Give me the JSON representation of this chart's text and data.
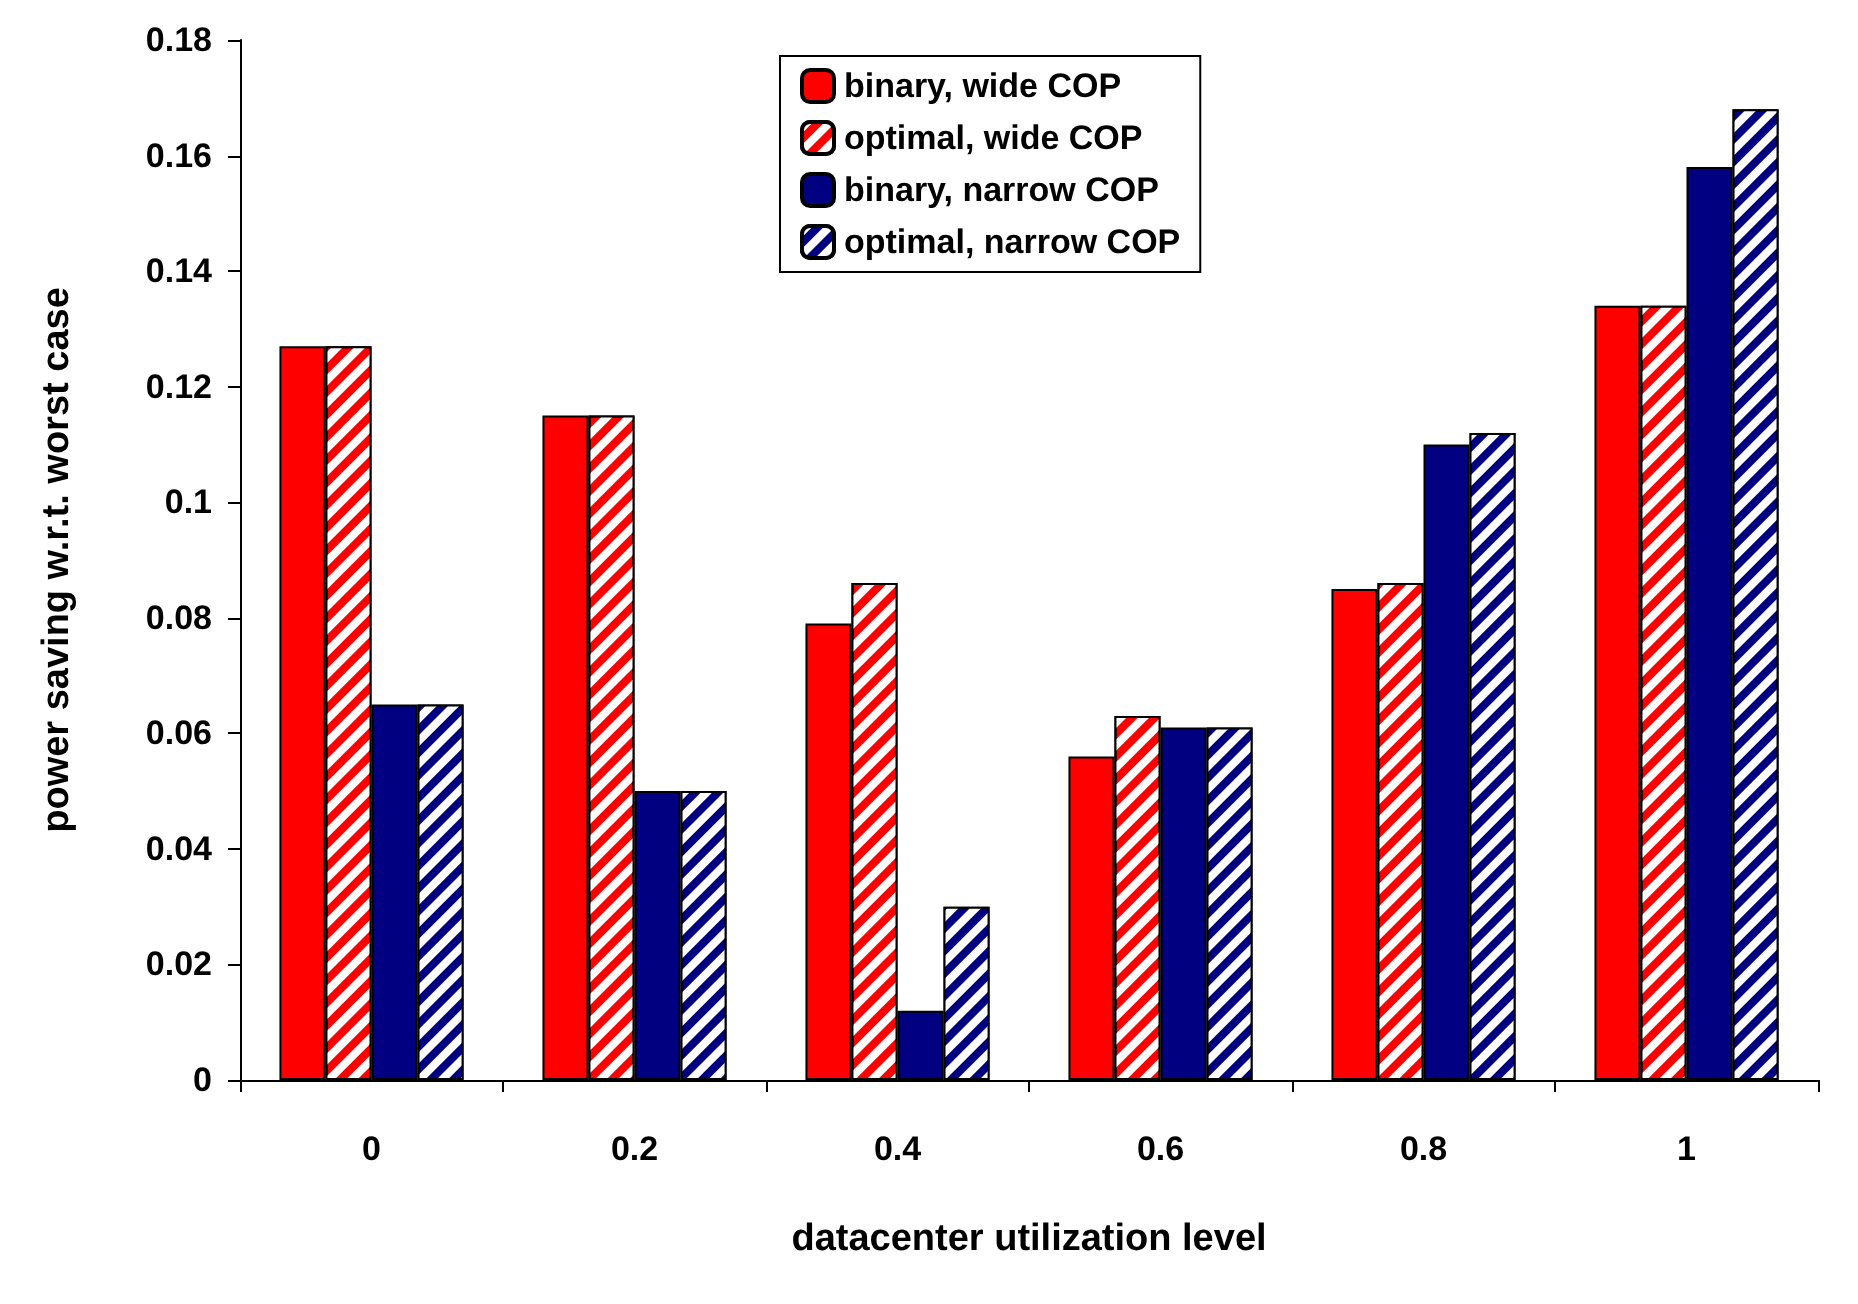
{
  "chart_data": {
    "type": "bar",
    "xlabel": "datacenter utilization level",
    "ylabel": "power saving w.r.t. worst case",
    "categories": [
      "0",
      "0.2",
      "0.4",
      "0.6",
      "0.8",
      "1"
    ],
    "series": [
      {
        "name": "binary, wide COP",
        "color": "#ff0000",
        "values": [
          0.127,
          0.115,
          0.079,
          0.056,
          0.085,
          0.134
        ]
      },
      {
        "name": "optimal, wide COP",
        "color": "#ff0000",
        "values": [
          0.127,
          0.115,
          0.086,
          0.063,
          0.086,
          0.134
        ]
      },
      {
        "name": "binary, narrow COP",
        "color": "#000080",
        "values": [
          0.065,
          0.05,
          0.012,
          0.061,
          0.11,
          0.158
        ]
      },
      {
        "name": "optimal, narrow COP",
        "color": "#000080",
        "values": [
          0.065,
          0.05,
          0.03,
          0.061,
          0.112,
          0.168
        ]
      }
    ],
    "ylim": [
      0,
      0.18
    ],
    "yticks": [
      0,
      0.02,
      0.04,
      0.06,
      0.08,
      0.1,
      0.12,
      0.14,
      0.16,
      0.18
    ],
    "grid": false,
    "legend": "top"
  }
}
